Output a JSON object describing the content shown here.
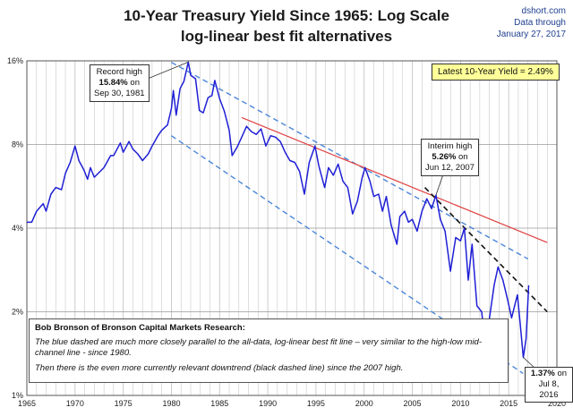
{
  "header": {
    "title_line1": "10-Year Treasury Yield Since 1965: Log Scale",
    "title_line2": "log-linear best fit alternatives",
    "source_line1": "dshort.com",
    "source_line2": "Data through",
    "source_line3": "January 27, 2017"
  },
  "annotations": {
    "record_high": {
      "line1": "Record high",
      "value": "15.84%",
      "line2_suffix": " on",
      "date": "Sep 30, 1981"
    },
    "interim_high": {
      "line1": "Interim high",
      "value": "5.26%",
      "line2_suffix": " on",
      "date": "Jun 12, 2007"
    },
    "low": {
      "value": "1.37%",
      "suffix": " on",
      "date": "Jul 8, 2016"
    },
    "latest": "Latest 10-Year Yield = 2.49%"
  },
  "note": {
    "heading": "Bob Bronson of Bronson Capital Markets Research:",
    "para1": "The blue dashed are much more closely parallel to the all-data, log-linear best fit line – very similar to the high-low mid-channel line - since 1980.",
    "para2": "Then there is the even more currently relevant downtrend (black dashed line) since the 2007 high."
  },
  "colors": {
    "series": "#1f1fd6",
    "blue_dashed": "#4a86d8",
    "red_fit": "#e04040",
    "black_dashed": "#111111",
    "grid": "#bfbfbf"
  },
  "chart_data": {
    "type": "line",
    "yscale": "log",
    "ylim": [
      1,
      16
    ],
    "xlim": [
      1965,
      2020
    ],
    "yticks": [
      "1%",
      "2%",
      "4%",
      "8%",
      "16%"
    ],
    "ytick_values": [
      1,
      2,
      4,
      8,
      16
    ],
    "xticks": [
      "1965",
      "1970",
      "1975",
      "1980",
      "1985",
      "1990",
      "1995",
      "2000",
      "2005",
      "2010",
      "2015",
      "2020"
    ],
    "xtick_values": [
      1965,
      1970,
      1975,
      1980,
      1985,
      1990,
      1995,
      2000,
      2005,
      2010,
      2015,
      2020
    ],
    "series": [
      {
        "x": [
          1965.0,
          1965.5,
          1966.0,
          1966.7,
          1967.0,
          1967.5,
          1968.0,
          1968.6,
          1969.0,
          1969.5,
          1970.0,
          1970.4,
          1970.9,
          1971.3,
          1971.6,
          1972.0,
          1972.6,
          1973.0,
          1973.7,
          1974.0,
          1974.7,
          1975.0,
          1975.6,
          1976.0,
          1976.5,
          1977.0,
          1977.6,
          1978.0,
          1978.6,
          1979.0,
          1979.6,
          1980.0,
          1980.2,
          1980.5,
          1980.9,
          1981.3,
          1981.75,
          1982.0,
          1982.5,
          1982.9,
          1983.3,
          1983.8,
          1984.2,
          1984.5,
          1985.0,
          1985.5,
          1986.0,
          1986.3,
          1986.8,
          1987.3,
          1987.8,
          1988.3,
          1988.8,
          1989.3,
          1989.8,
          1990.3,
          1990.8,
          1991.3,
          1991.8,
          1992.3,
          1992.8,
          1993.3,
          1993.8,
          1994.3,
          1994.9,
          1995.3,
          1995.9,
          1996.3,
          1996.8,
          1997.3,
          1997.8,
          1998.3,
          1998.8,
          1999.3,
          1999.8,
          2000.1,
          2000.6,
          2001.0,
          2001.5,
          2001.9,
          2002.3,
          2002.8,
          2003.4,
          2003.7,
          2004.2,
          2004.6,
          2005.0,
          2005.5,
          2006.0,
          2006.5,
          2007.0,
          2007.45,
          2007.9,
          2008.4,
          2008.95,
          2009.5,
          2010.0,
          2010.4,
          2010.8,
          2011.2,
          2011.7,
          2012.2,
          2012.6,
          2013.0,
          2013.5,
          2013.9,
          2014.4,
          2014.9,
          2015.3,
          2015.9,
          2016.2,
          2016.52,
          2016.8,
          2017.07
        ],
        "y": [
          4.2,
          4.2,
          4.6,
          4.9,
          4.6,
          5.3,
          5.6,
          5.5,
          6.3,
          6.9,
          7.9,
          7.0,
          6.5,
          6.0,
          6.6,
          6.1,
          6.4,
          6.6,
          7.3,
          7.3,
          8.1,
          7.5,
          8.2,
          7.7,
          7.4,
          7.0,
          7.4,
          7.9,
          8.6,
          9.0,
          9.4,
          10.8,
          12.5,
          10.2,
          12.7,
          13.5,
          15.84,
          14.2,
          13.8,
          10.6,
          10.4,
          11.8,
          12.0,
          13.6,
          11.7,
          10.5,
          9.0,
          7.3,
          7.8,
          8.5,
          9.3,
          8.9,
          8.7,
          9.1,
          7.9,
          8.6,
          8.5,
          8.2,
          7.5,
          7.0,
          6.9,
          6.4,
          5.3,
          6.9,
          7.9,
          6.7,
          5.6,
          6.6,
          6.2,
          6.8,
          5.9,
          5.6,
          4.5,
          5.0,
          6.1,
          6.6,
          5.9,
          5.2,
          5.3,
          4.6,
          5.2,
          4.1,
          3.5,
          4.4,
          4.6,
          4.2,
          4.3,
          3.9,
          4.6,
          5.1,
          4.7,
          5.26,
          4.3,
          3.9,
          2.8,
          3.7,
          3.6,
          4.0,
          2.6,
          3.5,
          2.1,
          2.0,
          1.5,
          1.9,
          2.5,
          2.9,
          2.6,
          2.2,
          1.9,
          2.3,
          1.8,
          1.37,
          1.6,
          2.49
        ]
      }
    ],
    "fit_lines": [
      {
        "style": "blue-dashed",
        "x": [
          1980.0,
          2017.0
        ],
        "y": [
          15.8,
          3.1
        ]
      },
      {
        "style": "blue-dashed",
        "x": [
          1980.0,
          2016.5
        ],
        "y": [
          8.6,
          1.2
        ]
      },
      {
        "style": "red",
        "x": [
          1987.3,
          2019.0
        ],
        "y": [
          10.0,
          3.55
        ]
      },
      {
        "style": "black-dashed",
        "x": [
          2006.3,
          2019.0
        ],
        "y": [
          5.6,
          2.0
        ]
      }
    ]
  }
}
